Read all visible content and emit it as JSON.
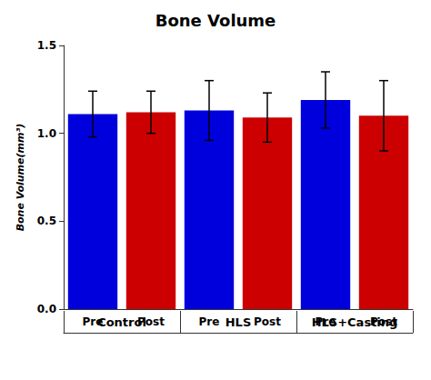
{
  "chart_data": {
    "type": "bar",
    "title": "Bone Volume",
    "ylabel": "Bone Volume(mm³)",
    "categories": [
      "Pre",
      "Post",
      "Pre",
      "Post",
      "Pre",
      "Post"
    ],
    "groups": [
      "Control",
      "HLS",
      "HLS+Casting"
    ],
    "values": [
      1.11,
      1.12,
      1.13,
      1.09,
      1.19,
      1.1
    ],
    "errors": [
      0.13,
      0.12,
      0.17,
      0.14,
      0.16,
      0.2
    ],
    "colors": [
      "#0000DD",
      "#CC0000",
      "#0000DD",
      "#CC0000",
      "#0000DD",
      "#CC0000"
    ],
    "ylim": [
      0.0,
      1.5
    ],
    "yticks": [
      {
        "value": 0.0,
        "label": "0.0"
      },
      0.5,
      {
        "value": 1.0,
        "label": "1.0"
      },
      1.5
    ],
    "grid": false
  }
}
